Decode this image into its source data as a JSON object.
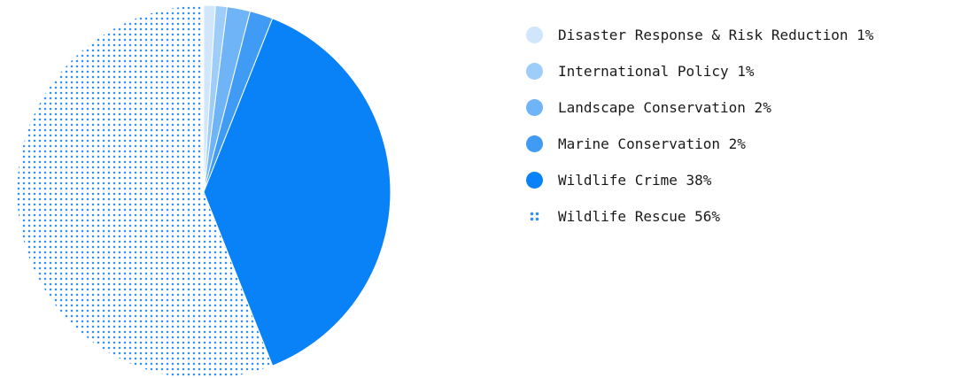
{
  "chart_data": {
    "type": "pie",
    "series": [
      {
        "name": "Disaster Response & Risk Reduction",
        "value": 1,
        "label": "Disaster Response & Risk Reduction 1%",
        "color": "#cfe6fc",
        "pattern": "solid"
      },
      {
        "name": "International Policy",
        "value": 1,
        "label": "International Policy 1%",
        "color": "#9fcdfa",
        "pattern": "solid"
      },
      {
        "name": "Landscape Conservation",
        "value": 2,
        "label": "Landscape Conservation 2%",
        "color": "#6fb4f6",
        "pattern": "solid"
      },
      {
        "name": "Marine Conservation",
        "value": 2,
        "label": "Marine Conservation 2%",
        "color": "#3f9bf4",
        "pattern": "solid"
      },
      {
        "name": "Wildlife Crime",
        "value": 38,
        "label": "Wildlife Crime 38%",
        "color": "#0a82f7",
        "pattern": "solid"
      },
      {
        "name": "Wildlife Rescue",
        "value": 56,
        "label": "Wildlife Rescue 56%",
        "color": "#2f8ff5",
        "pattern": "dots"
      }
    ],
    "legend_position": "right",
    "start_angle": "top",
    "direction": "clockwise"
  }
}
